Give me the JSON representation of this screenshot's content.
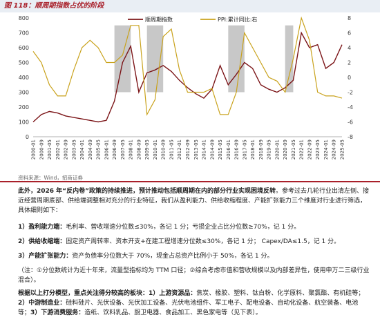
{
  "figure": {
    "title": "图 118：顺周期指数占优的阶段",
    "source": "资料来源：Wind，招商证券"
  },
  "chart_data": {
    "type": "line",
    "x": [
      "2000-01",
      "2000-09",
      "2001-05",
      "2002-01",
      "2002-09",
      "2003-05",
      "2004-01",
      "2004-09",
      "2005-05",
      "2006-01",
      "2006-09",
      "2007-05",
      "2008-01",
      "2008-09",
      "2009-05",
      "2010-01",
      "2010-09",
      "2011-05",
      "2012-01",
      "2012-09",
      "2013-05",
      "2014-01",
      "2014-09",
      "2015-05",
      "2016-01",
      "2016-09",
      "2017-05",
      "2018-01",
      "2018-09",
      "2019-05",
      "2020-01",
      "2020-09",
      "2021-05",
      "2022-01",
      "2022-09",
      "2023-05",
      "2024-01",
      "2024-09",
      "2025-05"
    ],
    "series": [
      {
        "name": "顺周期指数",
        "axis": "left",
        "color": "#7b1417",
        "values": [
          100,
          150,
          170,
          160,
          140,
          130,
          120,
          110,
          100,
          110,
          240,
          500,
          610,
          300,
          430,
          450,
          480,
          440,
          380,
          330,
          290,
          260,
          320,
          480,
          350,
          420,
          500,
          460,
          350,
          320,
          300,
          330,
          380,
          700,
          600,
          620,
          460,
          500,
          620
        ]
      },
      {
        "name": "PPI:累计同比:右",
        "axis": "right",
        "color": "#c9a21c",
        "values": [
          3.5,
          2,
          -1,
          -2.5,
          -2.5,
          1,
          4,
          5,
          4,
          2,
          2,
          3,
          7,
          7,
          -5,
          -3,
          5.5,
          6.5,
          1,
          -2,
          -2,
          -2,
          -1.5,
          -5,
          -5,
          -2,
          6,
          4,
          2,
          0,
          -0.5,
          -2,
          2.5,
          8,
          5,
          -2,
          -2.5,
          -2.5,
          -2.8
        ]
      }
    ],
    "left_axis": {
      "ylim": [
        0,
        800
      ],
      "ticks": [
        0,
        100,
        200,
        300,
        400,
        500,
        600,
        700,
        800
      ]
    },
    "right_axis": {
      "ylim": [
        -8,
        8
      ],
      "ticks": [
        -8,
        -6,
        -4,
        -2,
        0,
        2,
        4,
        6,
        8
      ]
    },
    "shaded_periods": [
      [
        "2006-09",
        "2008-01"
      ],
      [
        "2009-05",
        "2010-09"
      ],
      [
        "2016-01",
        "2017-05"
      ],
      [
        "2020-09",
        "2021-05"
      ]
    ],
    "legend": [
      "顺周期指数",
      "PPI:累计同比:右"
    ],
    "legend_position": "top-center",
    "grid": false
  },
  "text": {
    "p1_lead": "此外，2026 年“反内卷”政策的持续推进，预计推动包括顺周期在内的部分行业实现困境反转",
    "p1_rest": "。参考过去几轮行业出清左侧、接近经营周期底部、供给端调整相对充分的行业特征，我们从盈利能力、供给收缩程度、产能扩张能力三个维度对行业进行筛选，具体细则如下：",
    "r1_head": "1）盈利能力端：",
    "r1_body": "毛利率、营收增速分位数≤30%，各记 1 分；亏损企业占比分位数≥70%，记 1 分。",
    "r2_head": "2）供给收缩端：",
    "r2_body": "固定资产周转率、资本开支+在建工程增速分位数≤30%，各记 1 分； Capex/DA≤1.5，记 1 分。",
    "r3_head": "3）产能扩张能力：",
    "r3_body": "资产负债率分位数大于 70%，现金占总资产比例小于 50%，各记 1 分。",
    "note": "（注：①分位数统计为近十年来，流量型指标均为 TTM 口径；②综合考虑市值和营收规模以及内部差异性，使用申万二三级行业混合）。",
    "c_lead": "根据以上打分模型，重点关注得分较高的板块：1）上游资源品：",
    "c_1": "焦炭、橡胶、塑料、钛白粉、化学原料、聚氯酯、有机硅等；",
    "c_2h": "2）中游制造业：",
    "c_2": "硅料硅片、光伏设备、光伏加工设备、光伏电池组件、军工电子、配电设备、自动化设备、航空装备、电池等；",
    "c_3h": "3）下游消费服务：",
    "c_3": "造纸、饮料乳品、厨卫电器、食品加工、黑色家电等（见下表）。"
  }
}
